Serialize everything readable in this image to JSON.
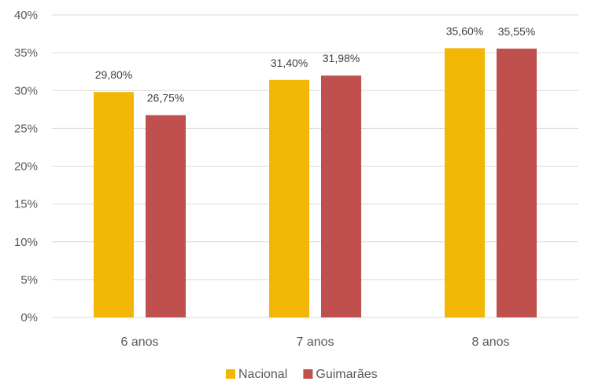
{
  "chart_data": {
    "type": "bar",
    "categories": [
      "6 anos",
      "7 anos",
      "8 anos"
    ],
    "series": [
      {
        "name": "Nacional",
        "color": "#F2B705",
        "values": [
          29.8,
          31.4,
          35.6
        ],
        "labels": [
          "29,80%",
          "31,40%",
          "35,60%"
        ]
      },
      {
        "name": "Guimarães",
        "color": "#C0504D",
        "values": [
          26.75,
          31.98,
          35.55
        ],
        "labels": [
          "26,75%",
          "31,98%",
          "35,55%"
        ]
      }
    ],
    "ylim": [
      0,
      40
    ],
    "yticks": [
      0,
      5,
      10,
      15,
      20,
      25,
      30,
      35,
      40
    ],
    "ytick_labels": [
      "0%",
      "5%",
      "10%",
      "15%",
      "20%",
      "25%",
      "30%",
      "35%",
      "40%"
    ],
    "grid": true,
    "legend": "bottom",
    "title": "",
    "xlabel": "",
    "ylabel": ""
  }
}
